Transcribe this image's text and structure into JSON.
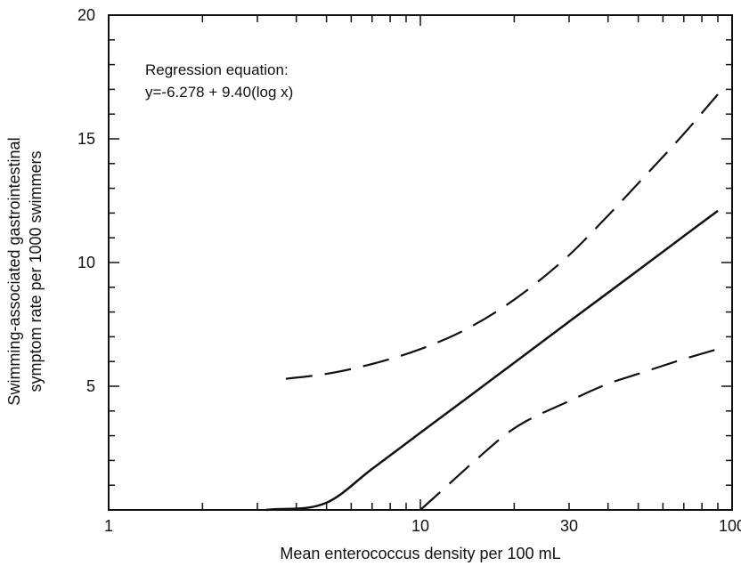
{
  "chart_data": {
    "type": "line",
    "title": "",
    "xlabel": "Mean enterococcus density per 100 mL",
    "ylabel_lines": [
      "Swimming-associated gastrointestinal",
      "symptom rate per 1000 swimmers"
    ],
    "x_scale": "log",
    "xlim": [
      1,
      100
    ],
    "ylim": [
      0,
      20
    ],
    "grid": false,
    "x_tick_labels": [
      "1",
      "10",
      "30",
      "100"
    ],
    "y_tick_labels": [
      "5",
      "10",
      "15",
      "20"
    ],
    "annotation_lines": [
      "Regression equation:",
      "y=-6.278 + 9.40(log x)"
    ],
    "series": [
      {
        "style": "solid",
        "x": [
          3.2,
          5,
          7,
          10,
          14,
          20,
          30,
          50,
          70,
          90
        ],
        "y": [
          0,
          0.29,
          1.66,
          3.12,
          4.49,
          5.95,
          7.61,
          9.69,
          11.07,
          12.09
        ]
      },
      {
        "style": "dashed",
        "x": [
          3.7,
          5,
          7,
          10,
          14,
          20,
          30,
          40,
          50,
          70,
          90
        ],
        "y": [
          5.3,
          5.5,
          5.9,
          6.5,
          7.3,
          8.5,
          10.3,
          11.9,
          13.2,
          15.2,
          16.8
        ]
      },
      {
        "style": "dashed",
        "x": [
          10,
          12,
          15,
          20,
          30,
          40,
          50,
          70,
          90
        ],
        "y": [
          0,
          0.9,
          2.0,
          3.3,
          4.4,
          5.1,
          5.5,
          6.1,
          6.5
        ]
      }
    ],
    "colors": {
      "line": "#111111",
      "axis": "#111111"
    }
  }
}
